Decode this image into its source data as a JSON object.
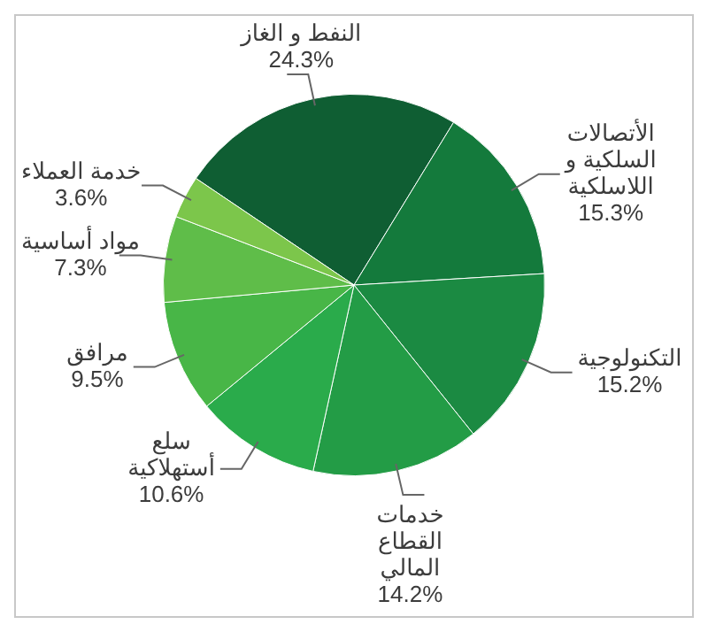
{
  "chart_data": {
    "type": "pie",
    "categories": [
      "النفط و الغاز",
      "الأتصالات السلكية و اللاسلكية",
      "التكنولوجية",
      "خدمات القطاع المالي",
      "سلع أستهلاكية",
      "مرافق",
      "مواد أساسية",
      "خدمة العملاء"
    ],
    "values": [
      24.3,
      15.3,
      15.2,
      14.2,
      10.6,
      9.5,
      7.3,
      3.6
    ],
    "colors": [
      "#0f5e33",
      "#147a3c",
      "#1b8a42",
      "#239c46",
      "#2aab4b",
      "#48b647",
      "#5fbd49",
      "#7cc64b"
    ],
    "value_labels": [
      "24.3%",
      "15.3%",
      "15.2%",
      "14.2%",
      "10.6%",
      "9.5%",
      "7.3%",
      "3.6%"
    ],
    "legend": false
  }
}
